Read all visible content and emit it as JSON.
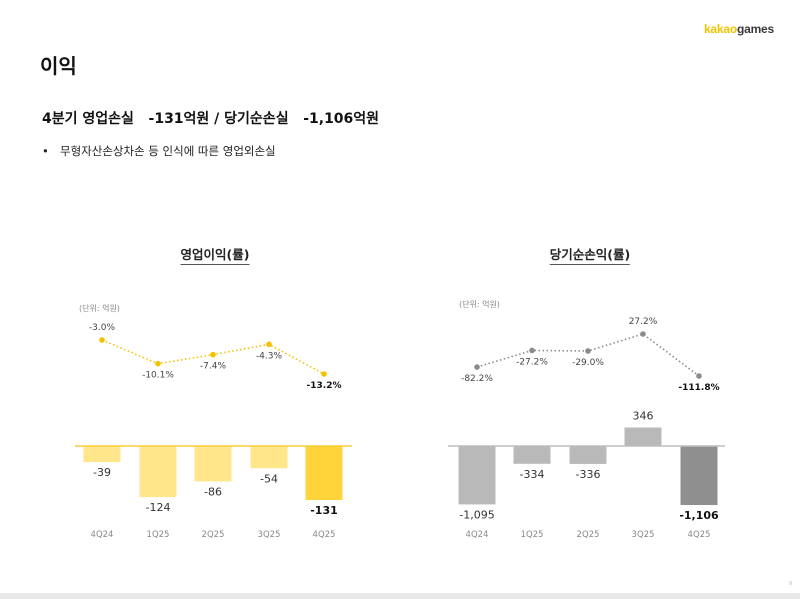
{
  "header": {
    "logo_part1": "kakao",
    "logo_part2": "games",
    "page_title": "이익"
  },
  "headline": "4분기 영업손실   -131억원 / 당기순손실   -1,106억원",
  "bullet_text": "무형자산손상차손 등 인식에 따른 영업외손실",
  "page_number": "9",
  "chart_data": [
    {
      "type": "bar",
      "title": "영업이익(률)",
      "unit_label": "(단위: 억원)",
      "categories": [
        "4Q24",
        "1Q25",
        "2Q25",
        "3Q25",
        "4Q25"
      ],
      "values": [
        -39,
        -124,
        -86,
        -54,
        -131
      ],
      "value_labels": [
        "-39",
        "-124",
        "-86",
        "-54",
        "-131"
      ],
      "ylim": [
        -160,
        0
      ],
      "bar_color": "#ffe68a",
      "highlight_color": "#ffd43a",
      "line_series": {
        "type": "line",
        "values": [
          -3.0,
          -10.1,
          -7.4,
          -4.3,
          -13.2
        ],
        "labels": [
          "-3.0%",
          "-10.1%",
          "-7.4%",
          "-4.3%",
          "-13.2%"
        ],
        "ylim": [
          -16,
          0
        ],
        "color": "#f2c200"
      }
    },
    {
      "type": "bar",
      "title": "당기순손익(률)",
      "unit_label": "(단위: 억원)",
      "categories": [
        "4Q24",
        "1Q25",
        "2Q25",
        "3Q25",
        "4Q25"
      ],
      "values": [
        -1095,
        -334,
        -336,
        346,
        -1106
      ],
      "value_labels": [
        "-1,095",
        "-334",
        "-336",
        "346",
        "-1,106"
      ],
      "ylim": [
        -1300,
        700
      ],
      "bar_color": "#b9b9b9",
      "highlight_color": "#8f8f8f",
      "line_series": {
        "type": "line",
        "values": [
          -82.2,
          -27.2,
          -29.0,
          27.2,
          -111.8
        ],
        "labels": [
          "-82.2%",
          "-27.2%",
          "-29.0%",
          "27.2%",
          "-111.8%"
        ],
        "ylim": [
          -180,
          60
        ],
        "color": "#8a8a8a"
      }
    }
  ]
}
